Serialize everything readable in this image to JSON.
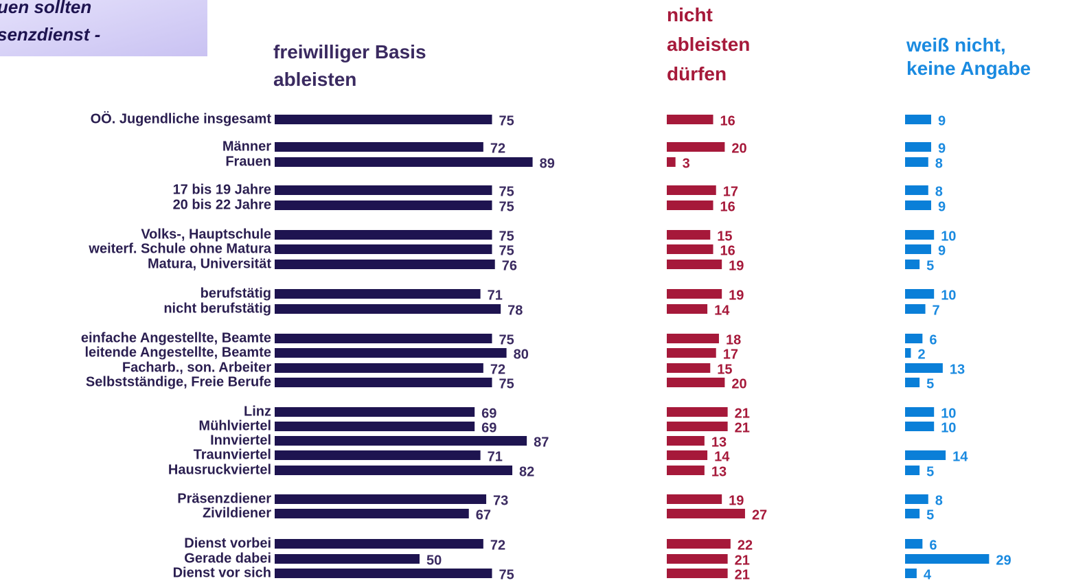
{
  "chart_data": {
    "type": "bar",
    "title": "uen sollten\nsenzdienst -",
    "categories": [
      "OÖ. Jugendliche insgesamt",
      "Männer",
      "Frauen",
      "17 bis 19 Jahre",
      "20 bis 22 Jahre",
      "Volks-, Hauptschule",
      "weiterf. Schule ohne Matura",
      "Matura, Universität",
      "berufstätig",
      "nicht berufstätig",
      "einfache Angestellte, Beamte",
      "leitende Angestellte, Beamte",
      "Facharb., son. Arbeiter",
      "Selbstständige, Freie Berufe",
      "Linz",
      "Mühlviertel",
      "Innviertel",
      "Traunviertel",
      "Hausruckviertel",
      "Präsenzdiener",
      "Zivildiener",
      "Dienst vorbei",
      "Gerade dabei",
      "Dienst vor sich"
    ],
    "series": [
      {
        "name": "freiwilliger Basis\nableisten",
        "color": "#1e1450",
        "values": [
          75,
          72,
          89,
          75,
          75,
          75,
          75,
          76,
          71,
          78,
          75,
          80,
          72,
          75,
          69,
          69,
          87,
          71,
          82,
          73,
          67,
          72,
          50,
          75
        ]
      },
      {
        "name": "nicht\nableisten\ndürfen",
        "color": "#a6193a",
        "values": [
          16,
          20,
          3,
          17,
          16,
          15,
          16,
          19,
          19,
          14,
          18,
          17,
          15,
          20,
          21,
          21,
          13,
          14,
          13,
          19,
          27,
          22,
          21,
          21
        ]
      },
      {
        "name": "weiß nicht,\nkeine Angabe",
        "color": "#0a7fd8",
        "values": [
          9,
          9,
          8,
          8,
          9,
          10,
          9,
          5,
          10,
          7,
          6,
          2,
          13,
          5,
          10,
          10,
          null,
          14,
          5,
          8,
          5,
          6,
          29,
          4
        ]
      }
    ]
  }
}
